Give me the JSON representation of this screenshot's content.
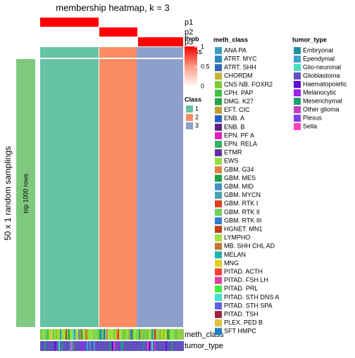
{
  "title": "membership heatmap, k = 3",
  "y_label": "50 x 1 random samplings",
  "row_label": "top 1000 rows",
  "row_names": [
    "p1",
    "p2",
    "p3",
    "class"
  ],
  "bottom_annotations": [
    "meth_class",
    "tumor_type"
  ],
  "prob_legend": {
    "title": "Prob",
    "ticks": [
      1,
      0.5,
      0
    ]
  },
  "class_legend": {
    "title": "Class",
    "items": [
      {
        "label": "1",
        "color": "#66c2a5"
      },
      {
        "label": "2",
        "color": "#fc8d62"
      },
      {
        "label": "3",
        "color": "#8da0cb"
      }
    ]
  },
  "meth_class_legend": {
    "title": "meth_class",
    "items": [
      {
        "label": "ANA PA",
        "color": "#3a9ec0"
      },
      {
        "label": "ATRT. MYC",
        "color": "#2e86c1"
      },
      {
        "label": "ATRT. SHH",
        "color": "#3366b3"
      },
      {
        "label": "CHORDM",
        "color": "#c8b43c"
      },
      {
        "label": "CNS NB. FOXR2",
        "color": "#7acc33"
      },
      {
        "label": "CPH. PAP",
        "color": "#40c040"
      },
      {
        "label": "DMG. K27",
        "color": "#2aa04a"
      },
      {
        "label": "EFT. CIC",
        "color": "#c0a030"
      },
      {
        "label": "ENB. A",
        "color": "#2060c0"
      },
      {
        "label": "ENB. B",
        "color": "#602080"
      },
      {
        "label": "EPN. PF A",
        "color": "#e020c0"
      },
      {
        "label": "EPN. RELA",
        "color": "#30b060"
      },
      {
        "label": "ETMR",
        "color": "#6030a0"
      },
      {
        "label": "EWS",
        "color": "#90e040"
      },
      {
        "label": "GBM. G34",
        "color": "#e08040"
      },
      {
        "label": "GBM. MES",
        "color": "#20a040"
      },
      {
        "label": "GBM. MID",
        "color": "#4090c0"
      },
      {
        "label": "GBM. MYCN",
        "color": "#4aa0b0"
      },
      {
        "label": "GBM. RTK I",
        "color": "#e04020"
      },
      {
        "label": "GBM. RTK II",
        "color": "#70d060"
      },
      {
        "label": "GBM. RTK III",
        "color": "#3080d0"
      },
      {
        "label": "HGNET. MN1",
        "color": "#c04010"
      },
      {
        "label": "LYMPHO",
        "color": "#a0e040"
      },
      {
        "label": "MB. SHH CHL AD",
        "color": "#c07830"
      },
      {
        "label": "MELAN",
        "color": "#20b0b0"
      },
      {
        "label": "MNG",
        "color": "#e0d020"
      },
      {
        "label": "PITAD. ACTH",
        "color": "#f04030"
      },
      {
        "label": "PITAD. FSH LH",
        "color": "#e040a0"
      },
      {
        "label": "PITAD. PRL",
        "color": "#40f040"
      },
      {
        "label": "PITAD. STH DNS A",
        "color": "#40e0d0"
      },
      {
        "label": "PITAD. STH SPA",
        "color": "#6060e0"
      },
      {
        "label": "PITAD. TSH",
        "color": "#a02040"
      },
      {
        "label": "PLEX. PED B",
        "color": "#e0c040"
      },
      {
        "label": "SFT HMPC",
        "color": "#2080c0"
      }
    ]
  },
  "tumor_type_legend": {
    "title": "tumor_type",
    "items": [
      {
        "label": "Embryonal",
        "color": "#2090a0"
      },
      {
        "label": "Ependymal",
        "color": "#40a0d0"
      },
      {
        "label": "Glio-neuronal",
        "color": "#40e0c0"
      },
      {
        "label": "Glioblastoma",
        "color": "#6050c0"
      },
      {
        "label": "Haematopoietic",
        "color": "#6010d0"
      },
      {
        "label": "Melanocytic",
        "color": "#a020f0"
      },
      {
        "label": "Mesenchymal",
        "color": "#20a070"
      },
      {
        "label": "Other glioma",
        "color": "#c040c0"
      },
      {
        "label": "Plexus",
        "color": "#8040f0"
      },
      {
        "label": "Sella",
        "color": "#ff40c0"
      }
    ]
  }
}
